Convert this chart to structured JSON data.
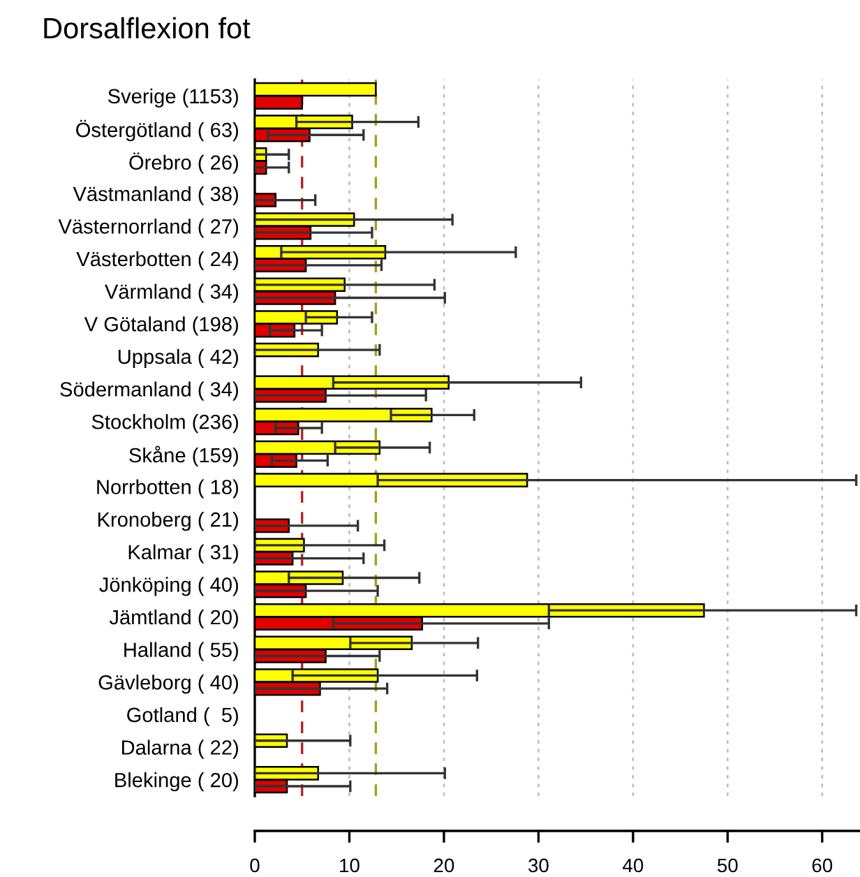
{
  "chart_data": {
    "type": "bar",
    "orientation": "horizontal",
    "title": "Dorsalflexion fot",
    "categories": [
      "Sverige (1153)",
      "Östergötland ( 63)",
      "Örebro ( 26)",
      "Västmanland ( 38)",
      "Västernorrland ( 27)",
      "Västerbotten ( 24)",
      "Värmland ( 34)",
      "V Götaland (198)",
      "Uppsala ( 42)",
      "Södermanland ( 34)",
      "Stockholm (236)",
      "Skåne (159)",
      "Norrbotten ( 18)",
      "Kronoberg ( 21)",
      "Kalmar ( 31)",
      "Jönköping ( 40)",
      "Jämtland ( 20)",
      "Halland ( 55)",
      "Gävleborg ( 40)",
      "Gotland (  5)",
      "Dalarna ( 22)",
      "Blekinge ( 20)"
    ],
    "series": [
      {
        "color": "#ffff00",
        "values": [
          12.8,
          10.3,
          1.2,
          null,
          10.5,
          13.8,
          9.5,
          8.7,
          6.7,
          20.5,
          18.7,
          13.2,
          28.8,
          null,
          5.2,
          9.3,
          47.5,
          16.6,
          13.0,
          null,
          3.4,
          6.7
        ],
        "errors": [
          null,
          [
            4.4,
            17.3
          ],
          [
            0,
            3.6
          ],
          null,
          [
            0,
            20.9
          ],
          [
            2.8,
            27.6
          ],
          [
            0,
            19.0
          ],
          [
            5.4,
            12.4
          ],
          [
            0,
            13.2
          ],
          [
            8.3,
            34.5
          ],
          [
            14.4,
            23.2
          ],
          [
            8.5,
            18.5
          ],
          [
            13.0,
            63.6
          ],
          null,
          [
            0,
            13.7
          ],
          [
            3.6,
            17.4
          ],
          [
            31.1,
            63.6
          ],
          [
            10.1,
            23.6
          ],
          [
            4.0,
            23.5
          ],
          null,
          [
            0,
            10.1
          ],
          [
            0,
            20.1
          ]
        ]
      },
      {
        "color": "#e00000",
        "values": [
          5.0,
          5.8,
          1.2,
          2.2,
          5.9,
          5.4,
          8.5,
          4.2,
          null,
          7.5,
          4.6,
          4.4,
          null,
          3.6,
          4.0,
          5.4,
          17.7,
          7.5,
          6.9,
          null,
          null,
          3.4
        ],
        "errors": [
          null,
          [
            1.4,
            11.5
          ],
          [
            0,
            3.6
          ],
          [
            0,
            6.4
          ],
          [
            0,
            12.4
          ],
          [
            0,
            13.4
          ],
          [
            0,
            20.1
          ],
          [
            1.6,
            7.1
          ],
          null,
          [
            0,
            18.1
          ],
          [
            2.2,
            7.1
          ],
          [
            1.8,
            7.7
          ],
          null,
          [
            0,
            10.9
          ],
          [
            0,
            11.5
          ],
          [
            0,
            13.0
          ],
          [
            8.3,
            31.1
          ],
          [
            0,
            13.2
          ],
          [
            0,
            14.0
          ],
          null,
          null,
          [
            0,
            10.1
          ]
        ]
      }
    ],
    "xlim": [
      0,
      64
    ],
    "xticks": [
      0,
      10,
      20,
      30,
      40,
      50,
      60
    ],
    "grid": "x",
    "legend": false,
    "ref_lines": [
      {
        "axis": "x",
        "value": 5.0,
        "color": "#b22222",
        "line_style": "dashed"
      },
      {
        "axis": "x",
        "value": 12.8,
        "color": "#a0a020",
        "line_style": "dashed"
      }
    ]
  }
}
